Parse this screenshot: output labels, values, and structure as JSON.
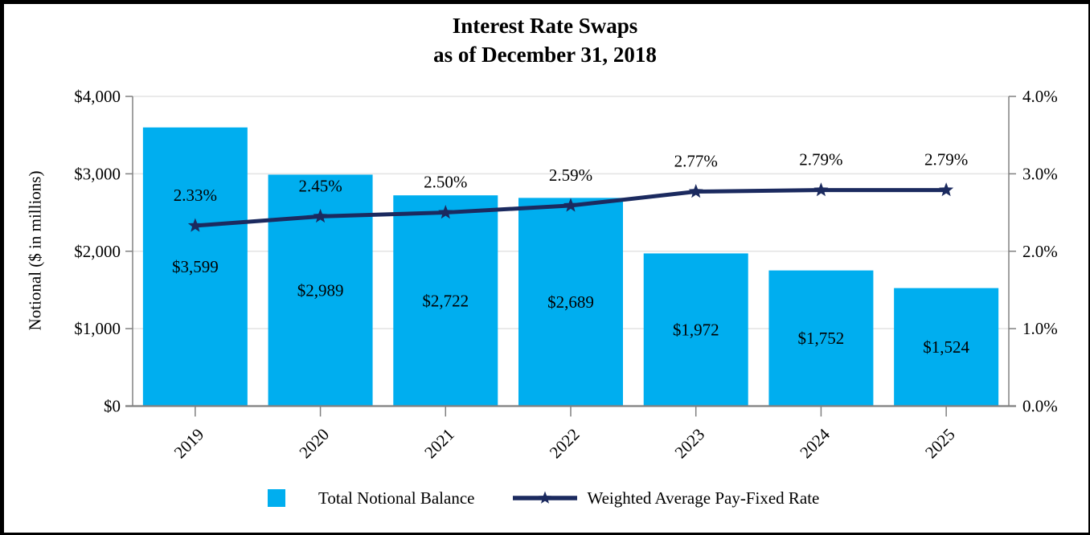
{
  "title": {
    "line1": "Interest Rate Swaps",
    "line2": "as of December 31, 2018"
  },
  "colors": {
    "bar": "#00AEEF",
    "line": "#1B2A5F",
    "axis": "#808080",
    "grid": "#E3E3E3",
    "text": "#000000"
  },
  "legend": {
    "bar_label": "Total Notional Balance",
    "line_label": "Weighted Average Pay-Fixed Rate"
  },
  "chart_data": {
    "type": "bar",
    "title": "Interest Rate Swaps as of December 31, 2018",
    "categories": [
      "2019",
      "2020",
      "2021",
      "2022",
      "2023",
      "2024",
      "2025"
    ],
    "series": [
      {
        "name": "Total Notional Balance",
        "type": "bar",
        "axis": "left",
        "values": [
          3599,
          2989,
          2722,
          2689,
          1972,
          1752,
          1524
        ],
        "data_labels": [
          "$3,599",
          "$2,989",
          "$2,722",
          "$2,689",
          "$1,972",
          "$1,752",
          "$1,524"
        ]
      },
      {
        "name": "Weighted Average Pay-Fixed Rate",
        "type": "line",
        "axis": "right",
        "marker": "star",
        "values": [
          2.33,
          2.45,
          2.5,
          2.59,
          2.77,
          2.79,
          2.79
        ],
        "data_labels": [
          "2.33%",
          "2.45%",
          "2.50%",
          "2.59%",
          "2.77%",
          "2.79%",
          "2.79%"
        ]
      }
    ],
    "left_axis": {
      "title": "Notional ($ in millions)",
      "tick_labels": [
        "$4,000",
        "$3,000",
        "$2,000",
        "$1,000",
        "$0"
      ],
      "min": 0,
      "max": 4000
    },
    "right_axis": {
      "tick_labels": [
        "4.0%",
        "3.0%",
        "2.0%",
        "1.0%",
        "0.0%"
      ],
      "min": 0.0,
      "max": 4.0
    },
    "grid": true,
    "legend_position": "bottom"
  }
}
